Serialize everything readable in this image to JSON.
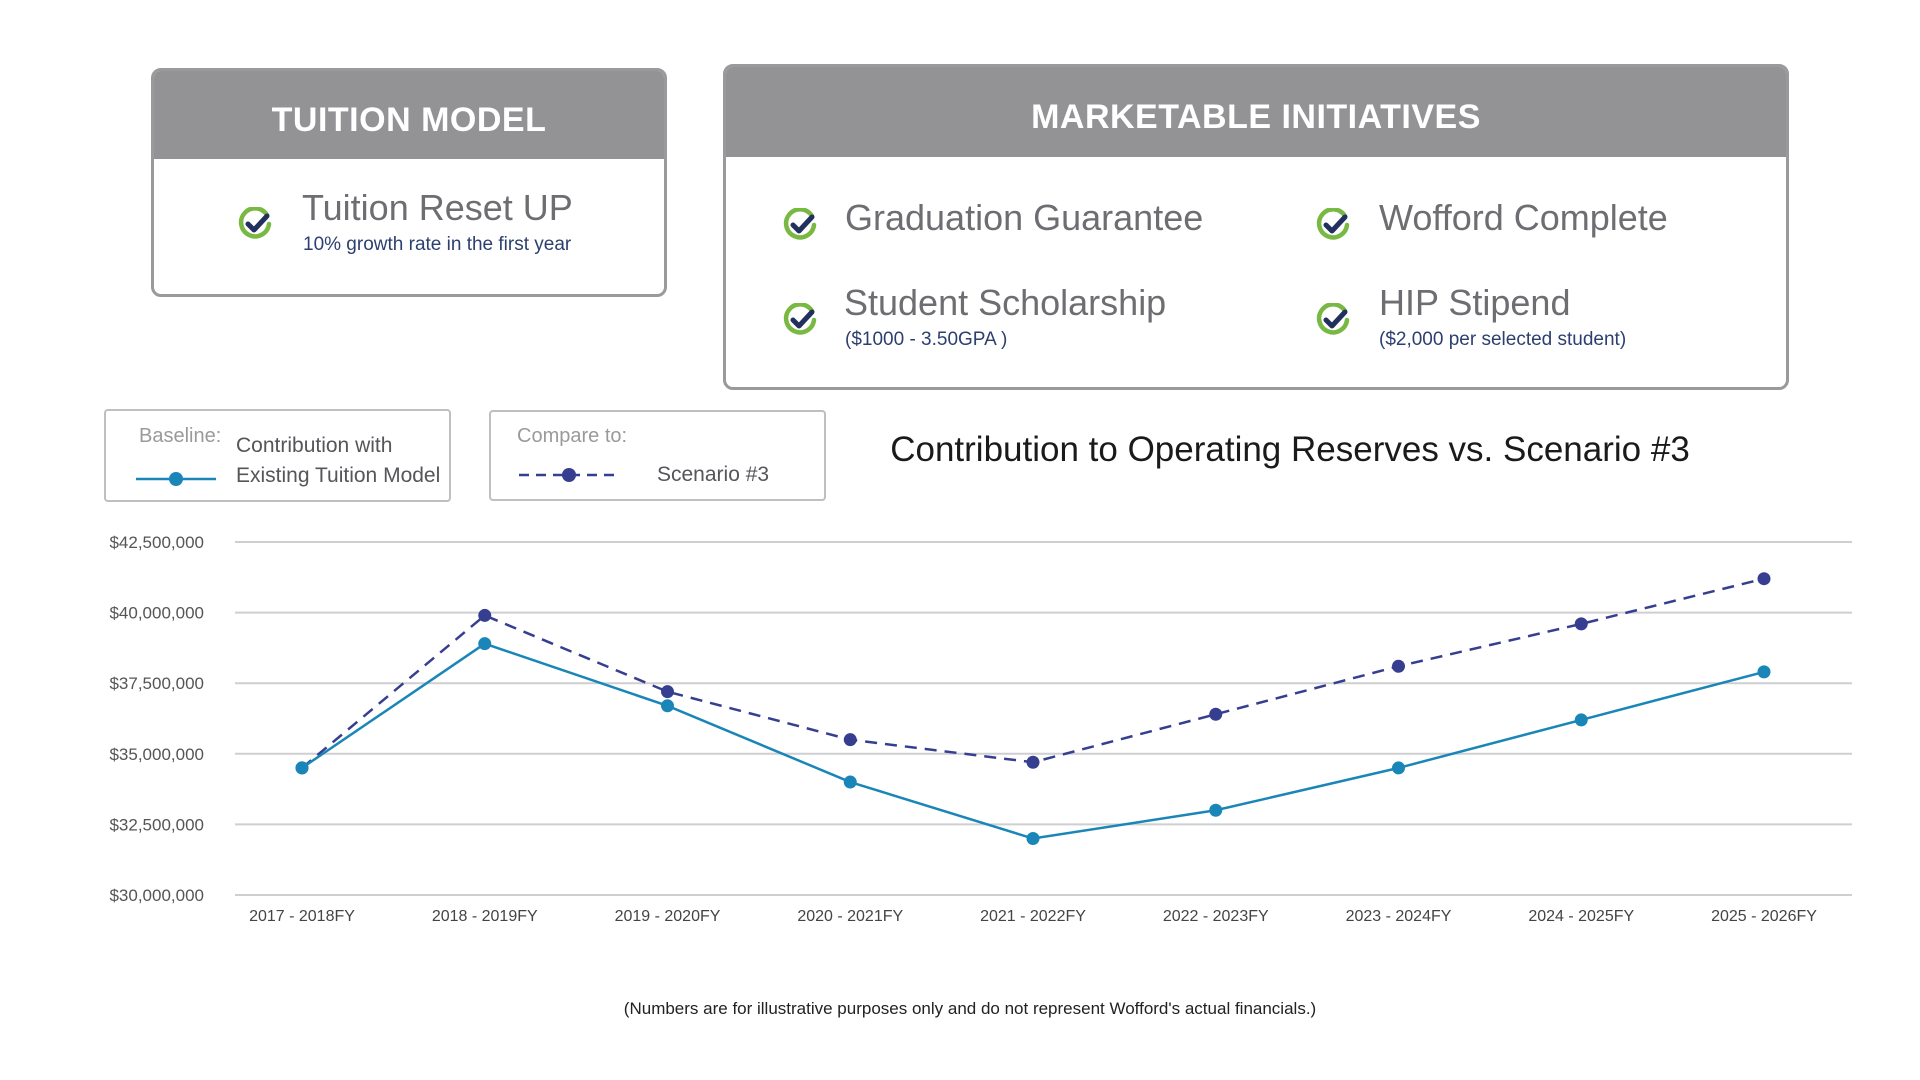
{
  "tuition_model": {
    "header": "TUITION MODEL",
    "item": {
      "title": "Tuition Reset UP",
      "subtitle": "10% growth rate in the first year"
    }
  },
  "marketable_initiatives": {
    "header": "MARKETABLE INITIATIVES",
    "items": [
      {
        "title": "Graduation Guarantee",
        "subtitle": ""
      },
      {
        "title": "Wofford Complete",
        "subtitle": ""
      },
      {
        "title": "Student Scholarship",
        "subtitle": "($1000 - 3.50GPA )"
      },
      {
        "title": "HIP Stipend",
        "subtitle": "($2,000 per selected student)"
      }
    ]
  },
  "legend": {
    "baseline_label": "Baseline:",
    "baseline_line1": "Contribution with",
    "baseline_line2": "Existing Tuition Model",
    "compare_label": "Compare to:",
    "compare_text": "Scenario #3"
  },
  "colors": {
    "baseline": "#1a86b8",
    "scenario": "#363f8f",
    "check_green": "#78b843",
    "check_navy": "#22305e",
    "grid": "#cfcfd2"
  },
  "chart_data": {
    "type": "line",
    "title": "Contribution to Operating Reserves vs. Scenario #3",
    "xlabel": "",
    "ylabel": "",
    "categories": [
      "2017 - 2018FY",
      "2018 - 2019FY",
      "2019 - 2020FY",
      "2020 - 2021FY",
      "2021 - 2022FY",
      "2022 - 2023FY",
      "2023 - 2024FY",
      "2024 - 2025FY",
      "2025 - 2026FY"
    ],
    "ylim": [
      30000000,
      42500000
    ],
    "yticks": [
      30000000,
      32500000,
      35000000,
      37500000,
      40000000,
      42500000
    ],
    "ytick_labels": [
      "$30,000,000",
      "$32,500,000",
      "$35,000,000",
      "$37,500,000",
      "$40,000,000",
      "$42,500,000"
    ],
    "grid": true,
    "series": [
      {
        "name": "Contribution with Existing Tuition Model",
        "style": "solid",
        "values": [
          34500000,
          38900000,
          36700000,
          34000000,
          32000000,
          33000000,
          34500000,
          36200000,
          37900000
        ]
      },
      {
        "name": "Scenario #3",
        "style": "dashed",
        "values": [
          34500000,
          39900000,
          37200000,
          35500000,
          34700000,
          36400000,
          38100000,
          39600000,
          41200000
        ]
      }
    ]
  },
  "footnote": "(Numbers are for illustrative purposes only and do not represent Wofford's actual financials.)"
}
